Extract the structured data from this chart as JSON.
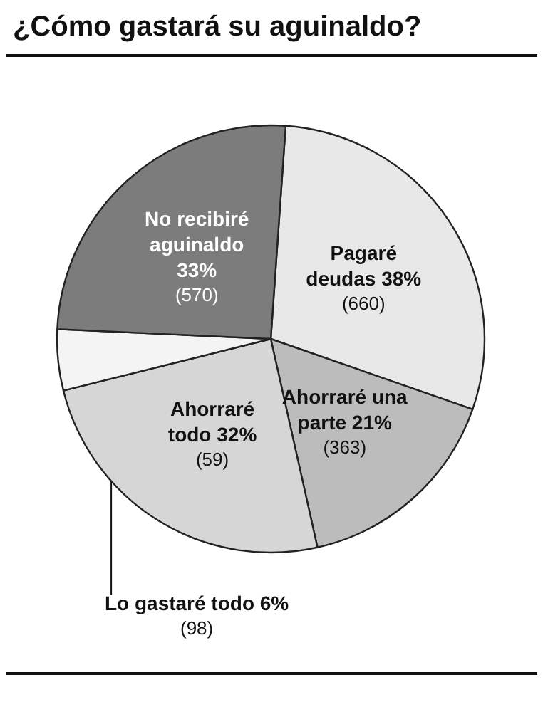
{
  "chart_data": {
    "type": "pie",
    "title": "¿Cómo gastará su aguinaldo?",
    "categories": [
      "Pagaré deudas",
      "Ahorraré una parte",
      "Ahorraré todo",
      "Lo gastaré todo",
      "No recibiré aguinaldo"
    ],
    "values": [
      38,
      21,
      32,
      6,
      33
    ],
    "colors": [
      "#e8e8e8",
      "#bcbcbc",
      "#d6d6d6",
      "#f4f4f4",
      "#7c7c7c"
    ],
    "value_labels": [
      "38% (660)",
      "21% (363)",
      "32% (59)",
      "6% (98)",
      "33% (570)"
    ],
    "legend": false
  }
}
